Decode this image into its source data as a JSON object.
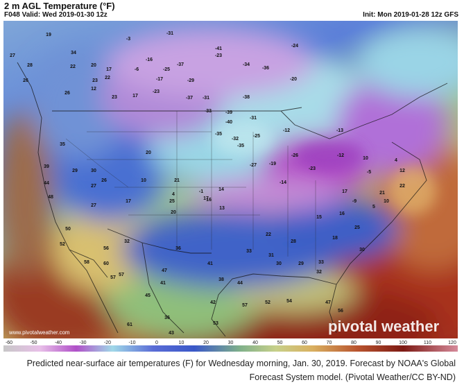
{
  "header": {
    "title": "2 m AGL Temperature (°F)",
    "valid": "F048 Valid: Wed 2019-01-30 12z",
    "init": "Init: Mon 2019-01-28 12z GFS"
  },
  "map": {
    "region": "North America (CONUS, southern Canada, northern Mexico)",
    "watermark": "pivotal weather",
    "credit_url": "www.pivotalweather.com",
    "colors": {
      "coldest": "#c486d6",
      "very_cold": "#b04cc8",
      "cold": "#9fd8e8",
      "cool": "#4f6fd0",
      "mild": "#b8d0a0",
      "warm": "#d9c56a",
      "hot": "#b8532e",
      "hottest": "#8a1a1a"
    },
    "values": [
      {
        "t": "19"
      },
      {
        "t": "34"
      },
      {
        "t": "27"
      },
      {
        "t": "28"
      },
      {
        "t": "22"
      },
      {
        "t": "26"
      },
      {
        "t": "20"
      },
      {
        "t": "23"
      },
      {
        "t": "26"
      },
      {
        "t": "17"
      },
      {
        "t": "22"
      },
      {
        "t": "12"
      },
      {
        "t": "23"
      },
      {
        "t": "17"
      },
      {
        "t": "-3"
      },
      {
        "t": "-31"
      },
      {
        "t": "-16"
      },
      {
        "t": "-25"
      },
      {
        "t": "-17"
      },
      {
        "t": "-23"
      },
      {
        "t": "-6"
      },
      {
        "t": "-37"
      },
      {
        "t": "-41"
      },
      {
        "t": "-23"
      },
      {
        "t": "-29"
      },
      {
        "t": "-36"
      },
      {
        "t": "-34"
      },
      {
        "t": "-31"
      },
      {
        "t": "-37"
      },
      {
        "t": "-38"
      },
      {
        "t": "-24"
      },
      {
        "t": "-31"
      },
      {
        "t": "-20"
      },
      {
        "t": "-13"
      },
      {
        "t": "-33"
      },
      {
        "t": "-39"
      },
      {
        "t": "-40"
      },
      {
        "t": "-35"
      },
      {
        "t": "-32"
      },
      {
        "t": "-35"
      },
      {
        "t": "-25"
      },
      {
        "t": "-12"
      },
      {
        "t": "-27"
      },
      {
        "t": "-19"
      },
      {
        "t": "-26"
      },
      {
        "t": "-23"
      },
      {
        "t": "-14"
      },
      {
        "t": "-12"
      },
      {
        "t": "10"
      },
      {
        "t": "-5"
      },
      {
        "t": "4"
      },
      {
        "t": "14"
      },
      {
        "t": "16"
      },
      {
        "t": "13"
      },
      {
        "t": "27"
      },
      {
        "t": "35"
      },
      {
        "t": "39"
      },
      {
        "t": "29"
      },
      {
        "t": "30"
      },
      {
        "t": "26"
      },
      {
        "t": "44"
      },
      {
        "t": "48"
      },
      {
        "t": "27"
      },
      {
        "t": "20"
      },
      {
        "t": "21"
      },
      {
        "t": "10"
      },
      {
        "t": "4"
      },
      {
        "t": "-1"
      },
      {
        "t": "25"
      },
      {
        "t": "17"
      },
      {
        "t": "20"
      },
      {
        "t": "17"
      },
      {
        "t": "50"
      },
      {
        "t": "52"
      },
      {
        "t": "58"
      },
      {
        "t": "60"
      },
      {
        "t": "56"
      },
      {
        "t": "32"
      },
      {
        "t": "57"
      },
      {
        "t": "47"
      },
      {
        "t": "36"
      },
      {
        "t": "41"
      },
      {
        "t": "38"
      },
      {
        "t": "33"
      },
      {
        "t": "44"
      },
      {
        "t": "31"
      },
      {
        "t": "30"
      },
      {
        "t": "29"
      },
      {
        "t": "32"
      },
      {
        "t": "33"
      },
      {
        "t": "28"
      },
      {
        "t": "22"
      },
      {
        "t": "18"
      },
      {
        "t": "25"
      },
      {
        "t": "30"
      },
      {
        "t": "42"
      },
      {
        "t": "57"
      },
      {
        "t": "52"
      },
      {
        "t": "54"
      },
      {
        "t": "47"
      },
      {
        "t": "56"
      },
      {
        "t": "57"
      },
      {
        "t": "45"
      },
      {
        "t": "41"
      },
      {
        "t": "36"
      },
      {
        "t": "53"
      },
      {
        "t": "43"
      },
      {
        "t": "61"
      },
      {
        "t": "22"
      },
      {
        "t": "21"
      },
      {
        "t": "10"
      },
      {
        "t": "12"
      },
      {
        "t": "17"
      },
      {
        "t": "16"
      },
      {
        "t": "5"
      },
      {
        "t": "-9"
      },
      {
        "t": "15"
      }
    ]
  },
  "scale": {
    "ticks": [
      "-60",
      "-50",
      "-40",
      "-30",
      "-20",
      "-10",
      "0",
      "10",
      "20",
      "30",
      "40",
      "50",
      "60",
      "70",
      "80",
      "90",
      "100",
      "110",
      "120"
    ],
    "min": -60,
    "max": 120
  },
  "caption": {
    "line1": "Predicted near-surface air temperatures (F) for Wednesday morning, Jan. 30, 2019. Forecast by NOAA's Global",
    "line2": "Forecast System model. (Pivotal Weather/CC BY-ND)"
  }
}
